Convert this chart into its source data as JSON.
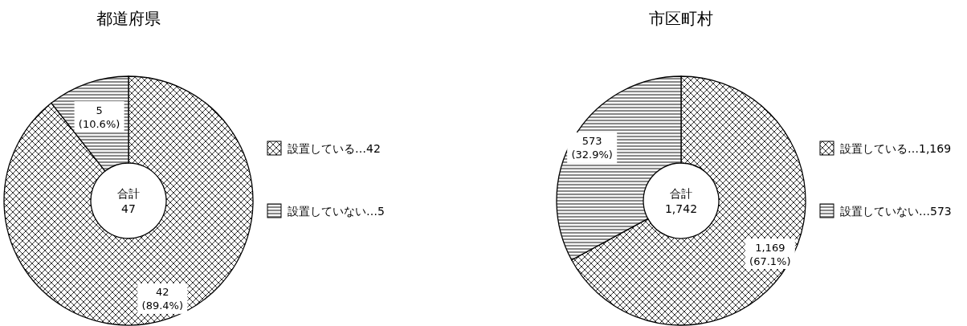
{
  "chart_data": [
    {
      "type": "donut",
      "title": "都道府県",
      "categories": [
        "設置している…42",
        "設置していない…5"
      ],
      "values": [
        42,
        5
      ],
      "colors": [
        "#ffffff",
        "#f7f7f7"
      ],
      "value_labels": [
        "42\n(89.4%)",
        "5\n(10.6%)"
      ],
      "annotations": [
        "合計\n47"
      ],
      "legend": "right"
    },
    {
      "type": "donut",
      "title": "市区町村",
      "categories": [
        "設置している…1,169",
        "設置していない…573"
      ],
      "values": [
        1169,
        573
      ],
      "colors": [
        "#ffffff",
        "#f7f7f7"
      ],
      "value_labels": [
        "1,169\n(67.1%)",
        "573\n(32.9%)"
      ],
      "annotations": [
        "合計\n1,742"
      ],
      "legend": "right"
    }
  ]
}
